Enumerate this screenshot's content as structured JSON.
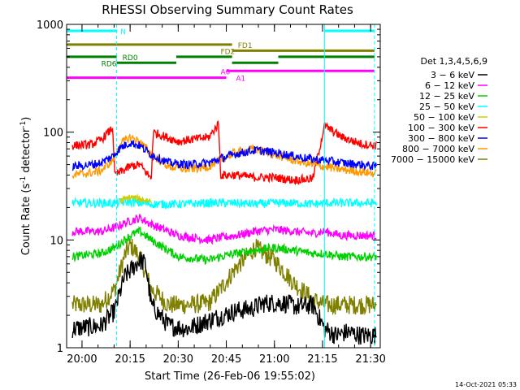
{
  "chart_data": {
    "type": "line",
    "title": "RHESSI Observing Summary Count Rates",
    "xlabel": "Start Time (26-Feb-06 19:55:02)",
    "ylabel": "Count Rate (s⁻¹ detector⁻¹)",
    "ylabel_parts": [
      "Count Rate (s",
      "-1",
      " detector",
      "-1",
      ")"
    ],
    "yscale": "log",
    "ylim": [
      1,
      1000
    ],
    "xlim_minutes": [
      19.92,
      21.55
    ],
    "x_ticks": [
      {
        "t": 20.0,
        "label": "20:00"
      },
      {
        "t": 20.25,
        "label": "20:15"
      },
      {
        "t": 20.5,
        "label": "20:30"
      },
      {
        "t": 20.75,
        "label": "20:45"
      },
      {
        "t": 21.0,
        "label": "21:00"
      },
      {
        "t": 21.25,
        "label": "21:15"
      },
      {
        "t": 21.5,
        "label": "21:30"
      }
    ],
    "y_ticks": [
      {
        "v": 1,
        "label": "1"
      },
      {
        "v": 10,
        "label": "10"
      },
      {
        "v": 100,
        "label": "100"
      },
      {
        "v": 1000,
        "label": "1000"
      }
    ],
    "legend_title": "Det 1,3,4,5,6,9",
    "legend_placement": "right",
    "series": [
      {
        "name": "3 − 6 keV",
        "color": "#000000",
        "x": [
          19.95,
          20.1,
          20.17,
          20.22,
          20.3,
          20.33,
          20.36,
          20.45,
          20.55,
          20.66,
          20.8,
          20.88,
          20.95,
          21.05,
          21.12,
          21.2,
          21.26,
          21.32,
          21.38,
          21.45,
          21.53
        ],
        "y": [
          1.5,
          1.6,
          2.2,
          4.5,
          6.5,
          6.0,
          2.5,
          1.6,
          1.5,
          1.8,
          2.2,
          2.3,
          2.6,
          2.6,
          2.4,
          2.5,
          1.5,
          1.3,
          1.4,
          1.3,
          1.3
        ]
      },
      {
        "name": "6 − 12 keV",
        "color": "#ff00ff",
        "x": [
          19.95,
          20.1,
          20.17,
          20.25,
          20.3,
          20.36,
          20.5,
          20.66,
          20.72,
          20.8,
          20.9,
          21.0,
          21.1,
          21.2,
          21.26,
          21.35,
          21.45,
          21.53
        ],
        "y": [
          12,
          12,
          13,
          15,
          16,
          14,
          11,
          10,
          10.5,
          11,
          12,
          12.5,
          12,
          11.5,
          12,
          11,
          11,
          11
        ]
      },
      {
        "name": "12 − 25 keV",
        "color": "#00d000",
        "x": [
          19.95,
          20.1,
          20.17,
          20.25,
          20.3,
          20.36,
          20.5,
          20.66,
          20.72,
          20.8,
          20.9,
          21.0,
          21.1,
          21.2,
          21.26,
          21.35,
          21.45,
          21.53
        ],
        "y": [
          7,
          7.5,
          8.5,
          11,
          12,
          10,
          7,
          6.5,
          7,
          7.5,
          8,
          8.5,
          8,
          7.5,
          7.5,
          7,
          7,
          7
        ]
      },
      {
        "name": "25 − 50 keV",
        "color": "#00ffff",
        "x": [
          19.95,
          20.1,
          20.17,
          20.25,
          20.3,
          20.36,
          20.5,
          20.66,
          20.72,
          20.8,
          20.9,
          21.0,
          21.1,
          21.2,
          21.26,
          21.35,
          21.45,
          21.53
        ],
        "y": [
          22,
          22,
          22,
          22.5,
          22,
          21.5,
          21.5,
          22,
          22,
          22,
          21.5,
          22,
          22,
          21.5,
          22,
          22,
          22,
          22
        ]
      },
      {
        "name": "50 − 100 keV",
        "color": "#cccc00",
        "x": [
          20.2,
          20.25,
          20.3,
          20.36
        ],
        "y": [
          23,
          25,
          24,
          23
        ]
      },
      {
        "name": "100 − 300 keV",
        "color": "#ff0000",
        "x": [
          19.95,
          20.05,
          20.1,
          20.16,
          20.17,
          20.25,
          20.3,
          20.36,
          20.37,
          20.5,
          20.66,
          20.71,
          20.72,
          20.8,
          20.9,
          21.0,
          21.1,
          21.2,
          21.26,
          21.35,
          21.45,
          21.53
        ],
        "y": [
          75,
          77,
          85,
          110,
          40,
          48,
          50,
          37,
          100,
          82,
          90,
          120,
          40,
          40,
          38,
          38,
          36,
          37,
          115,
          90,
          78,
          75
        ]
      },
      {
        "name": "300 − 800 keV",
        "color": "#0000ff",
        "x": [
          19.95,
          20.05,
          20.1,
          20.16,
          20.2,
          20.25,
          20.3,
          20.36,
          20.45,
          20.55,
          20.66,
          20.72,
          20.8,
          20.9,
          21.0,
          21.1,
          21.2,
          21.26,
          21.35,
          21.45,
          21.53
        ],
        "y": [
          48,
          50,
          52,
          60,
          72,
          80,
          75,
          62,
          52,
          50,
          52,
          57,
          63,
          68,
          65,
          60,
          56,
          55,
          52,
          50,
          48
        ]
      },
      {
        "name": "800 − 7000 keV",
        "color": "#ff9900",
        "x": [
          19.95,
          20.05,
          20.1,
          20.16,
          20.2,
          20.25,
          20.3,
          20.36,
          20.45,
          20.55,
          20.66,
          20.72,
          20.8,
          20.9,
          21.0,
          21.1,
          21.2,
          21.26,
          21.35,
          21.45,
          21.53
        ],
        "y": [
          40,
          42,
          44,
          55,
          78,
          90,
          82,
          62,
          48,
          45,
          48,
          56,
          65,
          70,
          62,
          55,
          50,
          48,
          45,
          43,
          41
        ]
      },
      {
        "name": "7000 − 15000 keV",
        "color": "#808000",
        "x": [
          19.95,
          20.05,
          20.1,
          20.17,
          20.22,
          20.25,
          20.3,
          20.36,
          20.45,
          20.55,
          20.66,
          20.72,
          20.8,
          20.9,
          21.0,
          21.1,
          21.2,
          21.26,
          21.32,
          21.38,
          21.45,
          21.53
        ],
        "y": [
          2.5,
          2.5,
          2.5,
          3.5,
          7,
          9,
          7,
          3.5,
          2.5,
          2.5,
          2.6,
          3.5,
          5.5,
          8.5,
          6.5,
          4,
          2.8,
          2.5,
          2.5,
          2.5,
          2.5,
          2.5
        ]
      }
    ],
    "vertical_markers": {
      "color": "#00ffff",
      "solid": [
        19.92,
        21.26
      ],
      "dashed": [
        20.18,
        21.52
      ]
    },
    "flag_bars": [
      {
        "label": "N",
        "color": "#00ffff",
        "level": 870,
        "segments": [
          [
            19.92,
            20.18
          ],
          [
            21.26,
            21.52
          ]
        ],
        "label_at": 20.2
      },
      {
        "label": "FD1",
        "color": "#808000",
        "level": 650,
        "segments": [
          [
            19.92,
            20.78
          ]
        ],
        "label_at": 20.81
      },
      {
        "label": "FD2",
        "color": "#808000",
        "level": 570,
        "segments": [
          [
            20.78,
            21.52
          ]
        ],
        "label_at": 20.72
      },
      {
        "label": "RD0",
        "color": "#008000",
        "level": 500,
        "segments": [
          [
            19.92,
            20.18
          ],
          [
            20.49,
            20.78
          ],
          [
            21.02,
            21.26
          ],
          [
            21.26,
            21.52
          ]
        ],
        "label_at": 20.21
      },
      {
        "label": "RD6",
        "color": "#008000",
        "level": 440,
        "segments": [
          [
            20.18,
            20.49
          ],
          [
            20.78,
            21.02
          ]
        ],
        "label_at": 20.1
      },
      {
        "label": "A0",
        "color": "#ff00ff",
        "level": 370,
        "segments": [
          [
            20.75,
            21.52
          ]
        ],
        "label_at": 20.72
      },
      {
        "label": "A1",
        "color": "#ff00ff",
        "level": 320,
        "segments": [
          [
            19.92,
            20.75
          ]
        ],
        "label_at": 20.8
      }
    ],
    "footer_date": "14-Oct-2021 05:33"
  }
}
